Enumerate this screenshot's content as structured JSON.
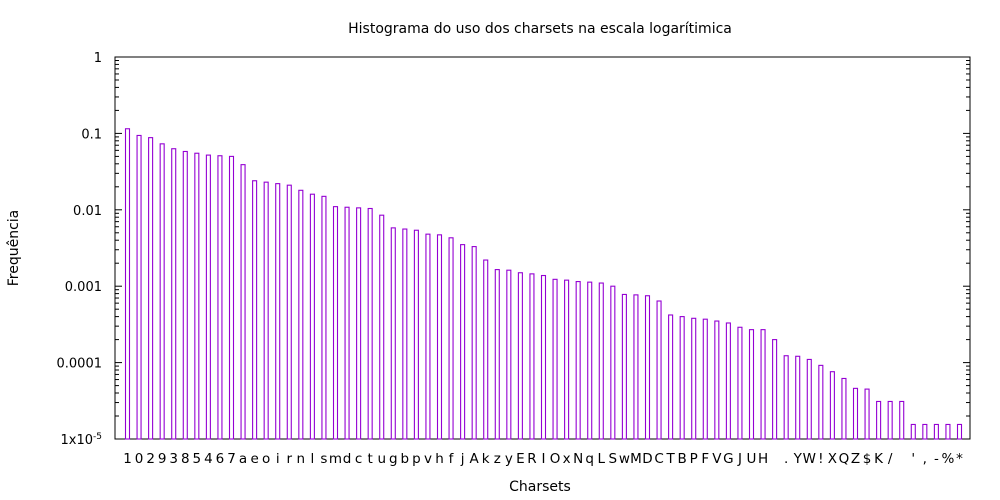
{
  "chart_data": {
    "type": "bar",
    "title": "Histograma do uso dos charsets na escala logarítimica",
    "xlabel": "Charsets",
    "ylabel": "Frequência",
    "yscale": "log",
    "ylim": [
      1e-05,
      1
    ],
    "yticks": [
      {
        "value": 1,
        "label": "1"
      },
      {
        "value": 0.1,
        "label": "0.1"
      },
      {
        "value": 0.01,
        "label": "0.01"
      },
      {
        "value": 0.001,
        "label": "0.001"
      },
      {
        "value": 0.0001,
        "label": "0.0001"
      },
      {
        "value": 1e-05,
        "label": "1x10",
        "label_exp": "-5"
      }
    ],
    "bar_color": "#9400d3",
    "grid": false,
    "categories": [
      "1",
      "0",
      "2",
      "9",
      "3",
      "8",
      "5",
      "4",
      "6",
      "7",
      "a",
      "e",
      "o",
      "i",
      "r",
      "n",
      "l",
      "s",
      "m",
      "d",
      "c",
      "t",
      "u",
      "g",
      "b",
      "p",
      "v",
      "h",
      "f",
      "j",
      "A",
      "k",
      "z",
      "y",
      "E",
      "R",
      "I",
      "O",
      "x",
      "N",
      "q",
      "L",
      "S",
      "w",
      "M",
      "D",
      "C",
      "T",
      "B",
      "P",
      "F",
      "V",
      "G",
      "J",
      "U",
      "H",
      " ",
      ".",
      "Y",
      "W",
      "!",
      "X",
      "Q",
      "Z",
      "$",
      "K",
      "/",
      " ",
      "'",
      ",",
      "-",
      "%",
      "*"
    ],
    "values": [
      0.115,
      0.094,
      0.088,
      0.073,
      0.063,
      0.058,
      0.055,
      0.052,
      0.051,
      0.05,
      0.039,
      0.024,
      0.023,
      0.022,
      0.021,
      0.018,
      0.016,
      0.015,
      0.011,
      0.0108,
      0.0106,
      0.0104,
      0.0085,
      0.0058,
      0.0056,
      0.0054,
      0.0048,
      0.0047,
      0.0043,
      0.0035,
      0.0033,
      0.0022,
      0.00165,
      0.00162,
      0.0015,
      0.00145,
      0.00138,
      0.00123,
      0.0012,
      0.00115,
      0.00113,
      0.0011,
      0.001,
      0.00078,
      0.00077,
      0.00075,
      0.00064,
      0.00042,
      0.0004,
      0.00038,
      0.00037,
      0.00035,
      0.00033,
      0.00029,
      0.00027,
      0.00027,
      0.0002,
      0.000123,
      0.000121,
      0.00011,
      9.2e-05,
      7.6e-05,
      6.2e-05,
      4.6e-05,
      4.5e-05,
      3.1e-05,
      3.1e-05,
      3.1e-05,
      1.55e-05,
      1.55e-05,
      1.55e-05,
      1.55e-05,
      1.55e-05
    ]
  }
}
